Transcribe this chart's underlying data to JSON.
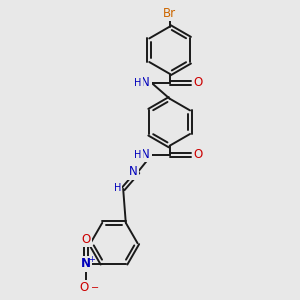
{
  "background_color": "#e8e8e8",
  "bond_color": "#1a1a1a",
  "dbo": 0.055,
  "lw": 1.4,
  "r": 0.72,
  "atom_colors": {
    "Br": "#cc6600",
    "N": "#0000bb",
    "O": "#cc0000"
  },
  "fs": 8.5,
  "fs_small": 7.0,
  "xlim": [
    0,
    10
  ],
  "ylim": [
    0,
    10
  ],
  "figsize": [
    3.0,
    3.0
  ],
  "dpi": 100
}
